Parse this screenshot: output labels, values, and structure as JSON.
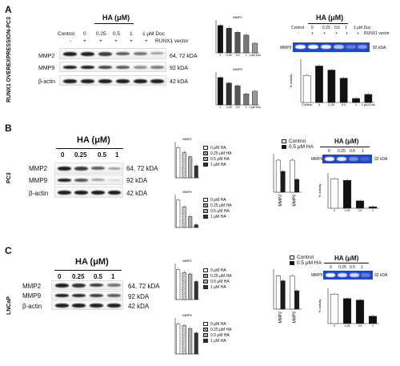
{
  "panels": {
    "A": {
      "letter": "A",
      "side_label": "RUNX1 OVEREXPRESSION-PC3",
      "western": {
        "header": "HA (μM)",
        "col_labels": [
          "Control",
          "0",
          "0.25",
          "0.5",
          "1",
          "1 μM Doc"
        ],
        "signs": [
          "-",
          "+",
          "+",
          "+",
          "+",
          "+"
        ],
        "vector_label": "RUNX1 vector",
        "rows": [
          {
            "label": "MMP2",
            "kda": "64, 72 kDA"
          },
          {
            "label": "MMP9",
            "kda": "92 kDA"
          },
          {
            "label": "β-actin",
            "kda": "42 kDA"
          }
        ]
      },
      "zymo": {
        "header": "HA (μM)",
        "col_labels": [
          "Control",
          "0",
          "0.25",
          "0.5",
          "1",
          "1 μM Doc"
        ],
        "signs": [
          "-",
          "+",
          "+",
          "+",
          "+",
          "+"
        ],
        "vector_label": "RUNX1 vector",
        "row_label": "MMP9",
        "kda": "92 kDA"
      }
    },
    "B": {
      "letter": "B",
      "side_label": "PC3",
      "western": {
        "header": "HA (μM)",
        "col_labels": [
          "0",
          "0.25",
          "0.5",
          "1"
        ],
        "rows": [
          {
            "label": "MMP2",
            "kda": "64, 72 kDA"
          },
          {
            "label": "MMP9",
            "kda": "92 kDA"
          },
          {
            "label": "β-actin",
            "kda": "42 kDA"
          }
        ]
      },
      "legend_items": [
        "0 μM HA",
        "0.25 μM HA",
        "0.5 μM HA",
        "1 μM HA"
      ],
      "rna_legend": [
        "Control",
        "0.5 μM HA"
      ],
      "zymo": {
        "header": "HA (μM)",
        "col_labels": [
          "0",
          "0.25",
          "0.5",
          "1"
        ],
        "row_label": "MMP9",
        "kda": "92 kDA"
      }
    },
    "C": {
      "letter": "C",
      "side_label": "LNCaP",
      "western": {
        "header": "HA (μM)",
        "col_labels": [
          "0",
          "0.25",
          "0.5",
          "1"
        ],
        "rows": [
          {
            "label": "MMP2",
            "kda": "64, 72 kDA"
          },
          {
            "label": "MMP9",
            "kda": "92 kDA"
          },
          {
            "label": "β-actin",
            "kda": "42 kDA"
          }
        ]
      },
      "legend_items": [
        "0 μM HA",
        "0.25 μM HA",
        "0.5 μM HA",
        "1 μM HA"
      ],
      "rna_legend": [
        "Control",
        "0.5 μM HA"
      ],
      "zymo": {
        "header": "HA (μM)",
        "col_labels": [
          "0",
          "0.25",
          "0.5",
          "1"
        ],
        "row_label": "MMP9",
        "kda": "92 kDA"
      }
    }
  },
  "colors": {
    "gel_blue": "#1f46c8",
    "bar_black": "#1a1a1a",
    "bar_white": "#ffffff"
  },
  "chart_data": [
    {
      "id": "A-mmp2-protein",
      "type": "bar",
      "title": "MMP2",
      "categories": [
        "0",
        "0.25",
        "0.5",
        "1",
        "1 μM Doc"
      ],
      "values": [
        1.0,
        0.9,
        0.75,
        0.65,
        0.35
      ],
      "ylim": [
        0,
        1.2
      ]
    },
    {
      "id": "A-mmp9-protein",
      "type": "bar",
      "title": "MMP9",
      "categories": [
        "0",
        "0.25",
        "0.5",
        "1",
        "1 μM Doc"
      ],
      "values": [
        1.0,
        0.8,
        0.7,
        0.4,
        0.5
      ],
      "ylim": [
        0,
        1.2
      ]
    },
    {
      "id": "A-zymo",
      "type": "bar",
      "ylabel": "% activity",
      "categories": [
        "Control",
        "0",
        "0.25",
        "0.5",
        "1",
        "1 μM Doc"
      ],
      "values": [
        100,
        135,
        120,
        90,
        15,
        30
      ],
      "ylim": [
        0,
        160
      ]
    },
    {
      "id": "B-mmp2-protein",
      "type": "bar",
      "title": "MMP2",
      "categories": [
        "0 μM HA",
        "0.25 μM HA",
        "0.5 μM HA",
        "1 μM HA"
      ],
      "values": [
        1.0,
        0.85,
        0.7,
        0.4
      ],
      "ylim": [
        0,
        1.2
      ]
    },
    {
      "id": "B-mmp9-protein",
      "type": "bar",
      "title": "MMP9",
      "categories": [
        "0 μM HA",
        "0.25 μM HA",
        "0.5 μM HA",
        "1 μM HA"
      ],
      "values": [
        1.0,
        0.75,
        0.4,
        0.1
      ],
      "ylim": [
        0,
        1.2
      ]
    },
    {
      "id": "B-mrna",
      "type": "bar",
      "categories": [
        "MMP2",
        "MMP9"
      ],
      "series": [
        {
          "name": "Control",
          "values": [
            1.0,
            1.0
          ]
        },
        {
          "name": "0.5 μM HA",
          "values": [
            0.65,
            0.4
          ]
        }
      ],
      "ylim": [
        0,
        1.2
      ]
    },
    {
      "id": "B-zymo",
      "type": "bar",
      "ylabel": "% activity",
      "categories": [
        "0",
        "0.25",
        "0.5",
        "1"
      ],
      "values": [
        100,
        95,
        25,
        5
      ],
      "ylim": [
        0,
        120
      ]
    },
    {
      "id": "C-mmp2-protein",
      "type": "bar",
      "title": "MMP2",
      "categories": [
        "0 μM HA",
        "0.25 μM HA",
        "0.5 μM HA",
        "1 μM HA"
      ],
      "values": [
        1.0,
        0.9,
        0.85,
        0.6
      ],
      "ylim": [
        0,
        1.2
      ]
    },
    {
      "id": "C-mmp9-protein",
      "type": "bar",
      "title": "MMP9",
      "categories": [
        "0 μM HA",
        "0.25 μM HA",
        "0.5 μM HA",
        "1 μM HA"
      ],
      "values": [
        1.0,
        0.95,
        0.85,
        0.7
      ],
      "ylim": [
        0,
        1.2
      ]
    },
    {
      "id": "C-mrna",
      "type": "bar",
      "categories": [
        "MMP2",
        "MMP9"
      ],
      "series": [
        {
          "name": "Control",
          "values": [
            1.0,
            1.0
          ]
        },
        {
          "name": "0.5 μM HA",
          "values": [
            0.85,
            0.55
          ]
        }
      ],
      "ylim": [
        0,
        1.2
      ]
    },
    {
      "id": "C-zymo",
      "type": "bar",
      "ylabel": "% activity",
      "categories": [
        "0",
        "0.25",
        "0.5",
        "1"
      ],
      "values": [
        100,
        85,
        80,
        25
      ],
      "ylim": [
        0,
        120
      ]
    }
  ]
}
